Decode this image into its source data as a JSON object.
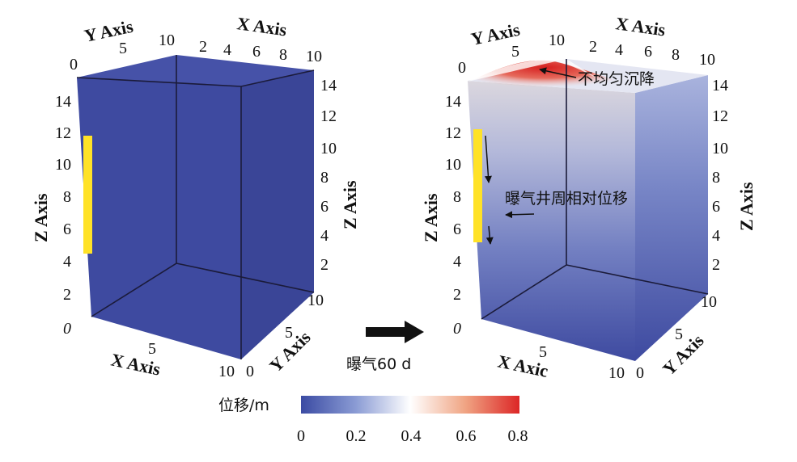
{
  "left_cube": {
    "z_ticks": [
      "0",
      "2",
      "4",
      "6",
      "8",
      "10",
      "12",
      "14"
    ],
    "z_ticks_right": [
      "2",
      "4",
      "6",
      "8",
      "10",
      "12",
      "14"
    ],
    "top_y_ticks": [
      "0",
      "5",
      "10"
    ],
    "top_x_ticks": [
      "2",
      "4",
      "6",
      "8",
      "10"
    ],
    "bottom_x_ticks": [
      "5",
      "10"
    ],
    "bottom_y_ticks": [
      "0",
      "5",
      "10"
    ],
    "labels": {
      "y_axis_top": "Y Axis",
      "x_axis_top": "X Axis",
      "z_axis_left": "Z Axis",
      "z_axis_right": "Z Axis",
      "x_axis_bottom": "X Axis",
      "y_axis_bottom": "Y Axis"
    }
  },
  "right_cube": {
    "z_ticks": [
      "0",
      "2",
      "4",
      "6",
      "8",
      "10",
      "12",
      "14"
    ],
    "z_ticks_right": [
      "2",
      "4",
      "6",
      "8",
      "10",
      "12",
      "14"
    ],
    "top_y_ticks": [
      "0",
      "5",
      "10"
    ],
    "top_x_ticks": [
      "2",
      "4",
      "6",
      "8",
      "10"
    ],
    "bottom_x_ticks": [
      "5",
      "10"
    ],
    "bottom_y_ticks": [
      "0",
      "5",
      "10"
    ],
    "labels": {
      "y_axis_top": "Y Axis",
      "x_axis_top": "X Axis",
      "z_axis_left": "Z Axis",
      "z_axis_right": "Z Axis",
      "x_axis_bottom": "X Axic",
      "y_axis_bottom": "Y Axis"
    },
    "annotations": {
      "settlement": "不均匀沉降",
      "relative_displacement": "曝气井周相对位移"
    }
  },
  "transition": {
    "label": "曝气60 d"
  },
  "colorbar": {
    "title": "位移/m",
    "ticks": [
      "0",
      "0.2",
      "0.4",
      "0.6",
      "0.8"
    ],
    "min": 0,
    "max": 0.8,
    "colors": {
      "low": "#3b4ba3",
      "mid": "#ffffff",
      "high": "#dc2626"
    }
  },
  "colors": {
    "cube_fill": "#3e4aa0",
    "well": "#ffe227"
  }
}
